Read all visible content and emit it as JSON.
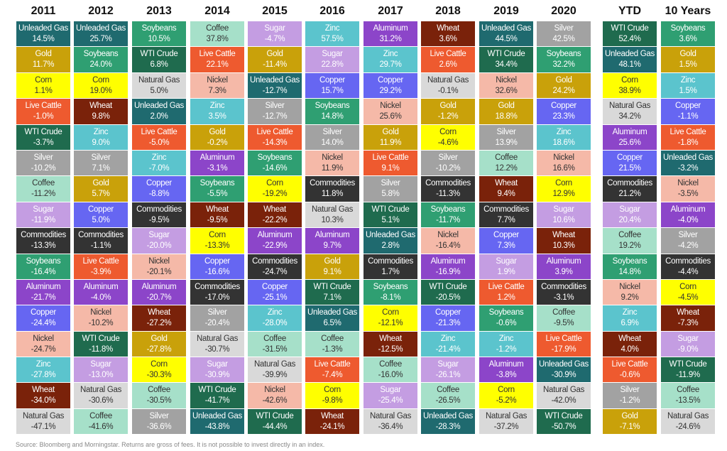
{
  "chart_data": {
    "type": "table",
    "title": "",
    "colors": {
      "Unleaded Gas": "#1f6a6f",
      "Gold": "#c9a10a",
      "Corn": "#ffff00",
      "Live Cattle": "#ee5a2f",
      "WTI Crude": "#1f6b4e",
      "Silver": "#a2a2a2",
      "Coffee": "#a6e0c9",
      "Sugar": "#c49de2",
      "Commodities": "#333333",
      "Soybeans": "#2f9f72",
      "Aluminum": "#8c45c9",
      "Copper": "#6666f2",
      "Nickel": "#f5b9a8",
      "Zinc": "#5bc4cd",
      "Wheat": "#7a220a",
      "Natural Gas": "#d9d9d9"
    },
    "dark_text": [
      "Corn",
      "Coffee",
      "Nickel",
      "Natural Gas"
    ],
    "columns": [
      {
        "header": "2011",
        "items": [
          [
            "Unleaded Gas",
            "14.5%"
          ],
          [
            "Gold",
            "11.7%"
          ],
          [
            "Corn",
            "1.1%"
          ],
          [
            "Live Cattle",
            "-1.0%"
          ],
          [
            "WTI Crude",
            "-3.7%"
          ],
          [
            "Silver",
            "-10.2%"
          ],
          [
            "Coffee",
            "-11.2%"
          ],
          [
            "Sugar",
            "-11.9%"
          ],
          [
            "Commodities",
            "-13.3%"
          ],
          [
            "Soybeans",
            "-16.4%"
          ],
          [
            "Aluminum",
            "-21.7%"
          ],
          [
            "Copper",
            "-24.4%"
          ],
          [
            "Nickel",
            "-24.7%"
          ],
          [
            "Zinc",
            "-27.8%"
          ],
          [
            "Wheat",
            "-34.0%"
          ],
          [
            "Natural Gas",
            "-47.1%"
          ]
        ]
      },
      {
        "header": "2012",
        "items": [
          [
            "Unleaded Gas",
            "25.7%"
          ],
          [
            "Soybeans",
            "24.0%"
          ],
          [
            "Corn",
            "19.0%"
          ],
          [
            "Wheat",
            "9.8%"
          ],
          [
            "Zinc",
            "9.0%"
          ],
          [
            "Silver",
            "7.1%"
          ],
          [
            "Gold",
            "5.7%"
          ],
          [
            "Copper",
            "5.0%"
          ],
          [
            "Commodities",
            "-1.1%"
          ],
          [
            "Live Cattle",
            "-3.9%"
          ],
          [
            "Aluminum",
            "-4.0%"
          ],
          [
            "Nickel",
            "-10.2%"
          ],
          [
            "WTI Crude",
            "-11.8%"
          ],
          [
            "Sugar",
            "-13.0%"
          ],
          [
            "Natural Gas",
            "-30.6%"
          ],
          [
            "Coffee",
            "-41.6%"
          ]
        ]
      },
      {
        "header": "2013",
        "items": [
          [
            "Soybeans",
            "10.5%"
          ],
          [
            "WTI Crude",
            "6.8%"
          ],
          [
            "Natural Gas",
            "5.0%"
          ],
          [
            "Unleaded Gas",
            "2.0%"
          ],
          [
            "Live Cattle",
            "-5.0%"
          ],
          [
            "Zinc",
            "-7.0%"
          ],
          [
            "Copper",
            "-8.8%"
          ],
          [
            "Commodities",
            "-9.5%"
          ],
          [
            "Sugar",
            "-20.0%"
          ],
          [
            "Nickel",
            "-20.1%"
          ],
          [
            "Aluminum",
            "-20.7%"
          ],
          [
            "Wheat",
            "-27.2%"
          ],
          [
            "Gold",
            "-27.8%"
          ],
          [
            "Corn",
            "-30.3%"
          ],
          [
            "Coffee",
            "-30.5%"
          ],
          [
            "Silver",
            "-36.6%"
          ]
        ]
      },
      {
        "header": "2014",
        "items": [
          [
            "Coffee",
            "37.8%"
          ],
          [
            "Live Cattle",
            "22.1%"
          ],
          [
            "Nickel",
            "7.3%"
          ],
          [
            "Zinc",
            "3.5%"
          ],
          [
            "Gold",
            "-0.2%"
          ],
          [
            "Aluminum",
            "-3.1%"
          ],
          [
            "Soybeans",
            "-5.5%"
          ],
          [
            "Wheat",
            "-9.5%"
          ],
          [
            "Corn",
            "-13.3%"
          ],
          [
            "Copper",
            "-16.6%"
          ],
          [
            "Commodities",
            "-17.0%"
          ],
          [
            "Silver",
            "-20.4%"
          ],
          [
            "Natural Gas",
            "-30.7%"
          ],
          [
            "Sugar",
            "-30.9%"
          ],
          [
            "WTI Crude",
            "-41.7%"
          ],
          [
            "Unleaded Gas",
            "-43.8%"
          ]
        ]
      },
      {
        "header": "2015",
        "items": [
          [
            "Sugar",
            "-4.7%"
          ],
          [
            "Gold",
            "-11.4%"
          ],
          [
            "Unleaded Gas",
            "-12.7%"
          ],
          [
            "Silver",
            "-12.7%"
          ],
          [
            "Live Cattle",
            "-14.3%"
          ],
          [
            "Soybeans",
            "-14.6%"
          ],
          [
            "Corn",
            "-19.2%"
          ],
          [
            "Wheat",
            "-22.2%"
          ],
          [
            "Aluminum",
            "-22.9%"
          ],
          [
            "Commodities",
            "-24.7%"
          ],
          [
            "Copper",
            "-25.1%"
          ],
          [
            "Zinc",
            "-28.0%"
          ],
          [
            "Coffee",
            "-31.5%"
          ],
          [
            "Natural Gas",
            "-39.9%"
          ],
          [
            "Nickel",
            "-42.6%"
          ],
          [
            "WTI Crude",
            "-44.4%"
          ]
        ]
      },
      {
        "header": "2016",
        "items": [
          [
            "Zinc",
            "57.5%"
          ],
          [
            "Sugar",
            "22.8%"
          ],
          [
            "Copper",
            "15.7%"
          ],
          [
            "Soybeans",
            "14.8%"
          ],
          [
            "Silver",
            "14.0%"
          ],
          [
            "Nickel",
            "11.9%"
          ],
          [
            "Commodities",
            "11.8%"
          ],
          [
            "Natural Gas",
            "10.3%"
          ],
          [
            "Aluminum",
            "9.7%"
          ],
          [
            "Gold",
            "9.1%"
          ],
          [
            "WTI Crude",
            "7.1%"
          ],
          [
            "Unleaded Gas",
            "6.5%"
          ],
          [
            "Coffee",
            "-1.3%"
          ],
          [
            "Live Cattle",
            "-7.4%"
          ],
          [
            "Corn",
            "-9.8%"
          ],
          [
            "Wheat",
            "-24.1%"
          ]
        ]
      },
      {
        "header": "2017",
        "items": [
          [
            "Aluminum",
            "31.2%"
          ],
          [
            "Zinc",
            "29.7%"
          ],
          [
            "Copper",
            "29.2%"
          ],
          [
            "Nickel",
            "25.6%"
          ],
          [
            "Gold",
            "11.9%"
          ],
          [
            "Live Cattle",
            "9.1%"
          ],
          [
            "Silver",
            "5.8%"
          ],
          [
            "WTI Crude",
            "5.1%"
          ],
          [
            "Unleaded Gas",
            "2.8%"
          ],
          [
            "Commodities",
            "1.7%"
          ],
          [
            "Soybeans",
            "-8.1%"
          ],
          [
            "Corn",
            "-12.1%"
          ],
          [
            "Wheat",
            "-12.5%"
          ],
          [
            "Coffee",
            "-16.0%"
          ],
          [
            "Sugar",
            "-25.4%"
          ],
          [
            "Natural Gas",
            "-36.4%"
          ]
        ]
      },
      {
        "header": "2018",
        "items": [
          [
            "Wheat",
            "3.6%"
          ],
          [
            "Live Cattle",
            "2.6%"
          ],
          [
            "Natural Gas",
            "-0.1%"
          ],
          [
            "Gold",
            "-1.2%"
          ],
          [
            "Corn",
            "-4.6%"
          ],
          [
            "Silver",
            "-10.2%"
          ],
          [
            "Commodities",
            "-11.3%"
          ],
          [
            "Soybeans",
            "-11.7%"
          ],
          [
            "Nickel",
            "-16.4%"
          ],
          [
            "Aluminum",
            "-16.9%"
          ],
          [
            "WTI Crude",
            "-20.5%"
          ],
          [
            "Copper",
            "-21.3%"
          ],
          [
            "Zinc",
            "-21.4%"
          ],
          [
            "Sugar",
            "-26.1%"
          ],
          [
            "Coffee",
            "-26.5%"
          ],
          [
            "Unleaded Gas",
            "-28.3%"
          ]
        ]
      },
      {
        "header": "2019",
        "items": [
          [
            "Unleaded Gas",
            "44.5%"
          ],
          [
            "WTI Crude",
            "34.4%"
          ],
          [
            "Nickel",
            "32.6%"
          ],
          [
            "Gold",
            "18.8%"
          ],
          [
            "Silver",
            "13.9%"
          ],
          [
            "Coffee",
            "12.2%"
          ],
          [
            "Wheat",
            "9.4%"
          ],
          [
            "Commodities",
            "7.7%"
          ],
          [
            "Copper",
            "7.3%"
          ],
          [
            "Sugar",
            "1.9%"
          ],
          [
            "Live Cattle",
            "1.2%"
          ],
          [
            "Soybeans",
            "-0.6%"
          ],
          [
            "Zinc",
            "-1.2%"
          ],
          [
            "Aluminum",
            "-3.8%"
          ],
          [
            "Corn",
            "-5.2%"
          ],
          [
            "Natural Gas",
            "-37.2%"
          ]
        ]
      },
      {
        "header": "2020",
        "items": [
          [
            "Silver",
            "42.5%"
          ],
          [
            "Soybeans",
            "32.2%"
          ],
          [
            "Gold",
            "24.2%"
          ],
          [
            "Copper",
            "23.3%"
          ],
          [
            "Zinc",
            "18.6%"
          ],
          [
            "Nickel",
            "16.6%"
          ],
          [
            "Corn",
            "12.9%"
          ],
          [
            "Sugar",
            "10.6%"
          ],
          [
            "Wheat",
            "10.3%"
          ],
          [
            "Aluminum",
            "3.9%"
          ],
          [
            "Commodities",
            "-3.1%"
          ],
          [
            "Coffee",
            "-9.5%"
          ],
          [
            "Live Cattle",
            "-17.9%"
          ],
          [
            "Unleaded Gas",
            "-30.9%"
          ],
          [
            "Natural Gas",
            "-42.0%"
          ],
          [
            "WTI Crude",
            "-50.7%"
          ]
        ]
      },
      {
        "header": "YTD",
        "items": [
          [
            "WTI Crude",
            "52.4%"
          ],
          [
            "Unleaded Gas",
            "48.1%"
          ],
          [
            "Corn",
            "38.9%"
          ],
          [
            "Natural Gas",
            "34.2%"
          ],
          [
            "Aluminum",
            "25.6%"
          ],
          [
            "Copper",
            "21.5%"
          ],
          [
            "Commodities",
            "21.2%"
          ],
          [
            "Sugar",
            "20.4%"
          ],
          [
            "Coffee",
            "19.2%"
          ],
          [
            "Soybeans",
            "14.8%"
          ],
          [
            "Nickel",
            "9.2%"
          ],
          [
            "Zinc",
            "6.9%"
          ],
          [
            "Wheat",
            "4.0%"
          ],
          [
            "Live Cattle",
            "-0.6%"
          ],
          [
            "Silver",
            "-1.2%"
          ],
          [
            "Gold",
            "-7.1%"
          ]
        ]
      },
      {
        "header": "10 Years",
        "items": [
          [
            "Soybeans",
            "3.6%"
          ],
          [
            "Gold",
            "1.5%"
          ],
          [
            "Zinc",
            "1.5%"
          ],
          [
            "Copper",
            "-1.1%"
          ],
          [
            "Live Cattle",
            "-1.8%"
          ],
          [
            "Unleaded Gas",
            "-3.2%"
          ],
          [
            "Nickel",
            "-3.5%"
          ],
          [
            "Aluminum",
            "-4.0%"
          ],
          [
            "Silver",
            "-4.2%"
          ],
          [
            "Commodities",
            "-4.4%"
          ],
          [
            "Corn",
            "-4.5%"
          ],
          [
            "Wheat",
            "-7.3%"
          ],
          [
            "Sugar",
            "-9.0%"
          ],
          [
            "WTI Crude",
            "-11.9%"
          ],
          [
            "Coffee",
            "-13.5%"
          ],
          [
            "Natural Gas",
            "-24.6%"
          ]
        ]
      }
    ]
  },
  "footer": "Source: Bloomberg and Morningstar. Returns are gross of fees. It is not possible to invest directly in an index."
}
